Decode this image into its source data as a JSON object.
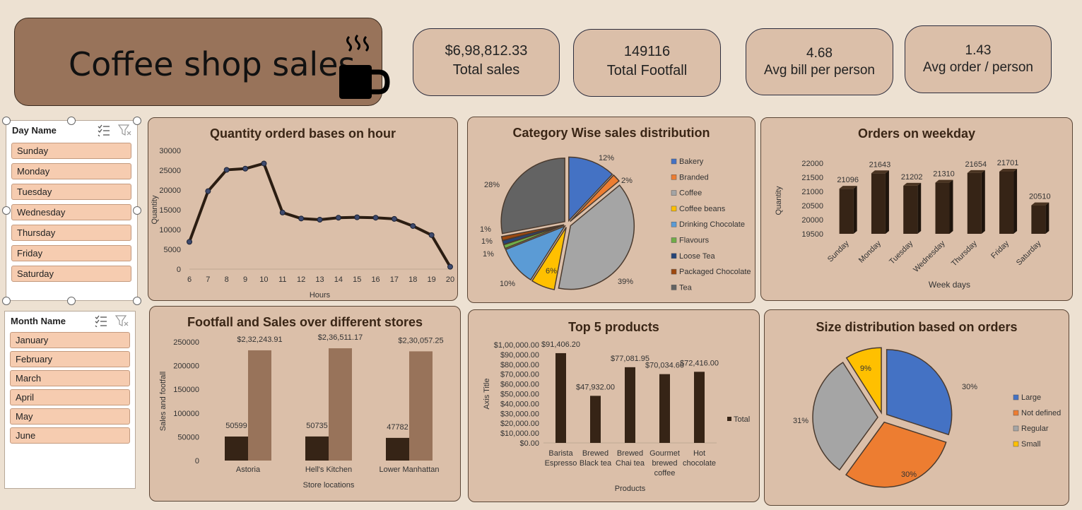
{
  "title": "Coffee shop sales",
  "kpis": [
    {
      "value": "$6,98,812.33",
      "label": "Total sales"
    },
    {
      "value": "149116",
      "label": "Total Footfall"
    },
    {
      "value": "4.68",
      "label": "Avg bill per person"
    },
    {
      "value": "1.43",
      "label": "Avg order / person"
    }
  ],
  "slicers": {
    "day": {
      "header": "Day Name",
      "items": [
        "Sunday",
        "Monday",
        "Tuesday",
        "Wednesday",
        "Thursday",
        "Friday",
        "Saturday"
      ]
    },
    "month": {
      "header": "Month Name",
      "items": [
        "January",
        "February",
        "March",
        "April",
        "May",
        "June"
      ]
    }
  },
  "colors": {
    "dark_brown": "#362416",
    "light_brown": "#98735a",
    "panel": "#dbbfa9"
  },
  "chart_data": [
    {
      "type": "line",
      "title": "Quantity orderd bases on hour",
      "xlabel": "Hours",
      "ylabel": "Quantity",
      "x": [
        6,
        7,
        8,
        9,
        10,
        11,
        12,
        13,
        14,
        15,
        16,
        17,
        18,
        19,
        20
      ],
      "values": [
        6900,
        19700,
        25100,
        25400,
        26700,
        14300,
        12800,
        12500,
        13000,
        13100,
        13000,
        12700,
        10900,
        8600,
        600
      ],
      "yticks": [
        "0",
        "5000",
        "10000",
        "15000",
        "20000",
        "25000",
        "30000"
      ],
      "ylim": [
        0,
        30000
      ]
    },
    {
      "type": "pie",
      "title": "Category Wise sales distribution",
      "categories": [
        "Bakery",
        "Branded",
        "Coffee",
        "Coffee beans",
        "Drinking Chocolate",
        "Flavours",
        "Loose Tea",
        "Packaged Chocolate",
        "Tea"
      ],
      "values": [
        12,
        2,
        39,
        6,
        10,
        1,
        1,
        1,
        28
      ],
      "labels": [
        "12%",
        "2%",
        "39%",
        "6%",
        "10%",
        "1%",
        "1%",
        "1%",
        "28%"
      ],
      "colors": [
        "#4472c4",
        "#ed7d31",
        "#a5a5a5",
        "#ffc000",
        "#5b9bd5",
        "#70ad47",
        "#264478",
        "#9e480e",
        "#636363"
      ],
      "legend": "right"
    },
    {
      "type": "bar",
      "title": "Orders on weekday",
      "xlabel": "Week days",
      "ylabel": "Quantity",
      "categories": [
        "Sunday",
        "Monday",
        "Tuesday",
        "Wednesday",
        "Thursday",
        "Friday",
        "Saturday"
      ],
      "values": [
        21096,
        21643,
        21202,
        21310,
        21654,
        21701,
        20510
      ],
      "labels": [
        "21096",
        "21643",
        "21202",
        "21310",
        "21654",
        "21701",
        "20510"
      ],
      "yticks": [
        "19500",
        "20000",
        "20500",
        "21000",
        "21500",
        "22000"
      ],
      "ylim": [
        19500,
        22000
      ]
    },
    {
      "type": "bar",
      "title": "Footfall and Sales over different stores",
      "xlabel": "Store locations",
      "ylabel": "Sales and footfall",
      "categories": [
        "Astoria",
        "Hell's Kitchen",
        "Lower Manhattan"
      ],
      "series": [
        {
          "values": [
            50599,
            50735,
            47782
          ],
          "labels": [
            "50599",
            "50735",
            "47782"
          ]
        },
        {
          "values": [
            232243.91,
            236511.17,
            230057.25
          ],
          "labels": [
            "$2,32,243.91",
            "$2,36,511.17",
            "$2,30,057.25"
          ]
        }
      ],
      "yticks": [
        "0",
        "50000",
        "100000",
        "150000",
        "200000",
        "250000"
      ],
      "ylim": [
        0,
        250000
      ]
    },
    {
      "type": "bar",
      "title": "Top 5 products",
      "xlabel": "Products",
      "ylabel": "Axis Title",
      "categories": [
        [
          "Barista",
          "Espresso"
        ],
        [
          "Brewed",
          "Black tea"
        ],
        [
          "Brewed",
          "Chai tea"
        ],
        [
          "Gourmet",
          "brewed",
          "coffee"
        ],
        [
          "Hot",
          "chocolate"
        ]
      ],
      "values": [
        91406.2,
        47932.0,
        77081.95,
        70034.6,
        72416.0
      ],
      "labels": [
        "$91,406.20",
        "$47,932.00",
        "$77,081.95",
        "$70,034.60",
        "$72,416.00"
      ],
      "yticks": [
        "$0.00",
        "$10,000.00",
        "$20,000.00",
        "$30,000.00",
        "$40,000.00",
        "$50,000.00",
        "$60,000.00",
        "$70,000.00",
        "$80,000.00",
        "$90,000.00",
        "$1,00,000.00"
      ],
      "ylim": [
        0,
        100000
      ],
      "legend_entries": [
        "Total"
      ],
      "legend": "right"
    },
    {
      "type": "pie",
      "title": "Size distribution based on orders",
      "categories": [
        "Large",
        "Not defined",
        "Regular",
        "Small"
      ],
      "values": [
        30,
        30,
        31,
        9
      ],
      "labels": [
        "30%",
        "30%",
        "31%",
        "9%"
      ],
      "colors": [
        "#4472c4",
        "#ed7d31",
        "#a5a5a5",
        "#ffc000"
      ],
      "legend": "right"
    }
  ]
}
